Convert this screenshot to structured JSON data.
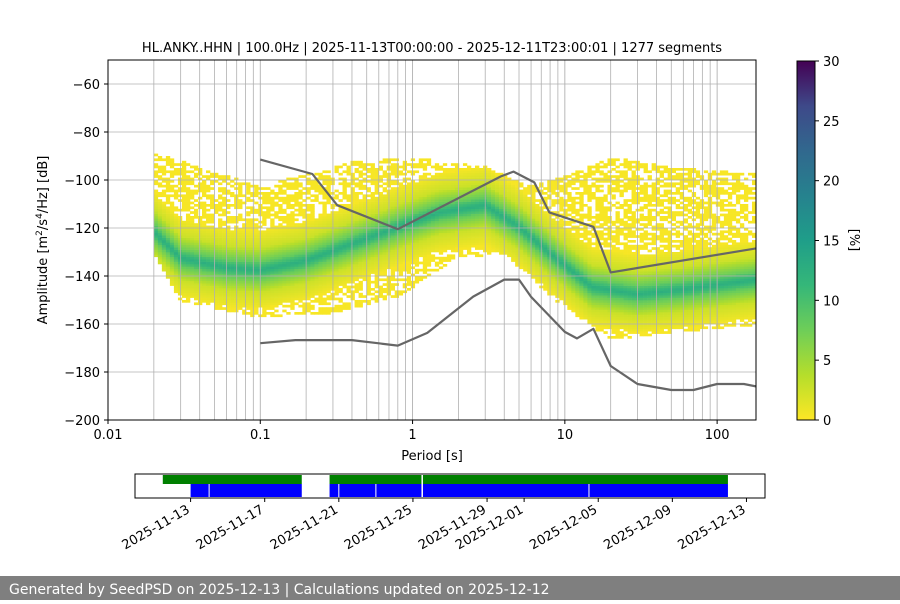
{
  "chart_data": [
    {
      "type": "heatmap",
      "title": "HL.ANKY..HHN | 100.0Hz | 2025-11-13T00:00:00 - 2025-12-11T23:00:01 | 1277 segments",
      "xlabel": "Period [s]",
      "ylabel_parts": [
        "Amplitude [m",
        "2",
        "/s",
        "4",
        "/Hz] [dB]"
      ],
      "x_scale": "log",
      "xlim": [
        0.01,
        180
      ],
      "ylim": [
        -200,
        -50
      ],
      "x_ticks": [
        {
          "value": 0.01,
          "label": "0.01"
        },
        {
          "value": 0.1,
          "label": "0.1"
        },
        {
          "value": 1,
          "label": "1"
        },
        {
          "value": 10,
          "label": "10"
        },
        {
          "value": 100,
          "label": "100"
        }
      ],
      "y_ticks": [
        {
          "value": -60,
          "label": "−60"
        },
        {
          "value": -80,
          "label": "−80"
        },
        {
          "value": -100,
          "label": "−100"
        },
        {
          "value": -120,
          "label": "−120"
        },
        {
          "value": -140,
          "label": "−140"
        },
        {
          "value": -160,
          "label": "−160"
        },
        {
          "value": -180,
          "label": "−180"
        },
        {
          "value": -200,
          "label": "−200"
        }
      ],
      "grid": true,
      "colormap": "viridis_r",
      "colorbar": {
        "label": "[%]",
        "range": [
          0,
          30
        ],
        "ticks": [
          {
            "value": 0,
            "label": "0"
          },
          {
            "value": 5,
            "label": "5"
          },
          {
            "value": 10,
            "label": "10"
          },
          {
            "value": 15,
            "label": "15"
          },
          {
            "value": 20,
            "label": "20"
          },
          {
            "value": 25,
            "label": "25"
          },
          {
            "value": 30,
            "label": "30"
          }
        ]
      },
      "density_band": {
        "period_range": [
          0.02,
          180
        ],
        "center_db": [
          {
            "period": 0.02,
            "db": -122
          },
          {
            "period": 0.03,
            "db": -133
          },
          {
            "period": 0.06,
            "db": -137
          },
          {
            "period": 0.1,
            "db": -138
          },
          {
            "period": 0.2,
            "db": -134
          },
          {
            "period": 0.4,
            "db": -127
          },
          {
            "period": 0.8,
            "db": -120
          },
          {
            "period": 1.5,
            "db": -114
          },
          {
            "period": 3,
            "db": -111
          },
          {
            "period": 5,
            "db": -120
          },
          {
            "period": 8,
            "db": -131
          },
          {
            "period": 15,
            "db": -145
          },
          {
            "period": 30,
            "db": -148
          },
          {
            "period": 60,
            "db": -146
          },
          {
            "period": 180,
            "db": -142
          }
        ],
        "upper_db": [
          {
            "period": 0.02,
            "db": -90
          },
          {
            "period": 0.1,
            "db": -104
          },
          {
            "period": 0.4,
            "db": -94
          },
          {
            "period": 1,
            "db": -92
          },
          {
            "period": 3,
            "db": -96
          },
          {
            "period": 6,
            "db": -104
          },
          {
            "period": 10,
            "db": -100
          },
          {
            "period": 20,
            "db": -92
          },
          {
            "period": 50,
            "db": -96
          },
          {
            "period": 180,
            "db": -99
          }
        ],
        "lower_db": [
          {
            "period": 0.02,
            "db": -130
          },
          {
            "period": 0.03,
            "db": -150
          },
          {
            "period": 0.1,
            "db": -157
          },
          {
            "period": 0.3,
            "db": -155
          },
          {
            "period": 0.8,
            "db": -148
          },
          {
            "period": 2,
            "db": -132
          },
          {
            "period": 4,
            "db": -130
          },
          {
            "period": 8,
            "db": -148
          },
          {
            "period": 20,
            "db": -166
          },
          {
            "period": 50,
            "db": -163
          },
          {
            "period": 180,
            "db": -160
          }
        ]
      },
      "series": [
        {
          "values": [
            {
              "x": 0.1,
              "y": -91.5
            },
            {
              "x": 0.22,
              "y": -97.5
            },
            {
              "x": 0.32,
              "y": -110.5
            },
            {
              "x": 0.8,
              "y": -120.5
            },
            {
              "x": 3.8,
              "y": -98.5
            },
            {
              "x": 4.6,
              "y": -96.5
            },
            {
              "x": 6.3,
              "y": -101
            },
            {
              "x": 7.9,
              "y": -113.5
            },
            {
              "x": 15.4,
              "y": -119.5
            },
            {
              "x": 20,
              "y": -138.5
            },
            {
              "x": 180,
              "y": -128.5
            }
          ]
        },
        {
          "values": [
            {
              "x": 0.1,
              "y": -168
            },
            {
              "x": 0.17,
              "y": -166.7
            },
            {
              "x": 0.4,
              "y": -166.7
            },
            {
              "x": 0.8,
              "y": -169
            },
            {
              "x": 1.25,
              "y": -163.7
            },
            {
              "x": 2.5,
              "y": -148.6
            },
            {
              "x": 4,
              "y": -141.5
            },
            {
              "x": 5,
              "y": -141.5
            },
            {
              "x": 6,
              "y": -148.7
            },
            {
              "x": 10,
              "y": -163.3
            },
            {
              "x": 12,
              "y": -166
            },
            {
              "x": 15.4,
              "y": -162
            },
            {
              "x": 20,
              "y": -177.5
            },
            {
              "x": 30,
              "y": -185
            },
            {
              "x": 50,
              "y": -187.5
            },
            {
              "x": 70,
              "y": -187.5
            },
            {
              "x": 100,
              "y": -185
            },
            {
              "x": 150,
              "y": -185
            },
            {
              "x": 180,
              "y": -186
            }
          ]
        }
      ]
    },
    {
      "type": "timeline",
      "x_range": [
        "2025-11-10",
        "2025-12-14"
      ],
      "x_ticks": [
        {
          "date": "2025-11-13",
          "label": "2025-11-13"
        },
        {
          "date": "2025-11-17",
          "label": "2025-11-17"
        },
        {
          "date": "2025-11-21",
          "label": "2025-11-21"
        },
        {
          "date": "2025-11-25",
          "label": "2025-11-25"
        },
        {
          "date": "2025-11-29",
          "label": "2025-11-29"
        },
        {
          "date": "2025-12-01",
          "label": "2025-12-01"
        },
        {
          "date": "2025-12-05",
          "label": "2025-12-05"
        },
        {
          "date": "2025-12-09",
          "label": "2025-12-09"
        },
        {
          "date": "2025-12-13",
          "label": "2025-12-13"
        }
      ],
      "green_segments": [
        {
          "start": "2025-11-11T12:00",
          "end": "2025-11-19T00:00"
        },
        {
          "start": "2025-11-20T12:00",
          "end": "2025-12-12T00:00"
        }
      ],
      "blue_segments": [
        {
          "start": "2025-11-13T00:00",
          "end": "2025-11-19T00:00"
        },
        {
          "start": "2025-11-20T12:00",
          "end": "2025-12-12T00:00"
        }
      ],
      "gaps": [
        "2025-11-14T00:00",
        "2025-11-21T00:00",
        "2025-11-23T00:00",
        "2025-11-25T12:00",
        "2025-12-04T12:00"
      ],
      "marker": "2025-11-25T12:00",
      "colors": {
        "green": "#008000",
        "blue": "#0000ff"
      }
    }
  ],
  "footer": {
    "text": "Generated by SeedPSD on 2025-12-13 | Calculations updated on 2025-12-12"
  }
}
